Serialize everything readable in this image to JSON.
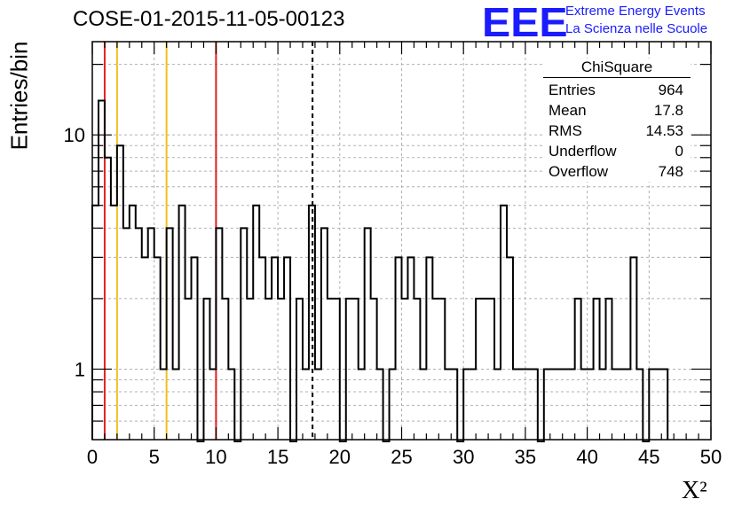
{
  "header": {
    "run_title": "COSE-01-2015-11-05-00123",
    "logo_text": "EEE",
    "brand_line1": "Extreme Energy Events",
    "brand_line2": "La Scienza nelle Scuole"
  },
  "stats_box": {
    "name": "ChiSquare",
    "rows": [
      {
        "label": "Entries",
        "value": "964"
      },
      {
        "label": "Mean",
        "value": "17.8"
      },
      {
        "label": "RMS",
        "value": "14.53"
      },
      {
        "label": "Underflow",
        "value": "0"
      },
      {
        "label": "Overflow",
        "value": "748"
      }
    ]
  },
  "colors": {
    "red_line": "#e02020",
    "yellow_line": "#f0c020",
    "histogram": "#000000",
    "logo": "#1b1bff"
  },
  "chart_data": {
    "type": "histogram",
    "xlabel": "X²",
    "ylabel": "Entries/bin",
    "xlim": [
      0,
      50
    ],
    "ylim": [
      0.5,
      25
    ],
    "y_scale": "log",
    "grid": true,
    "bin_width": 0.5,
    "x_ticks": [
      "0",
      "5",
      "10",
      "15",
      "20",
      "25",
      "30",
      "35",
      "40",
      "45",
      "50"
    ],
    "y_ticks": [
      "1",
      "10"
    ],
    "counts": [
      5,
      14,
      8,
      5,
      9,
      4,
      5,
      4,
      3,
      4,
      3,
      1,
      4,
      1,
      5,
      2,
      3,
      0,
      2,
      1,
      4,
      2,
      1,
      0,
      4,
      2,
      5,
      3,
      2,
      3,
      2,
      3,
      0,
      2,
      1,
      5,
      1,
      4,
      2,
      2,
      0,
      2,
      2,
      1,
      4,
      2,
      1,
      0,
      1,
      3,
      2,
      3,
      2,
      1,
      3,
      2,
      2,
      1,
      1,
      0,
      1,
      1,
      2,
      2,
      2,
      1,
      5,
      3,
      1,
      1,
      1,
      1,
      0,
      1,
      1,
      1,
      1,
      1,
      2,
      1,
      1,
      2,
      1,
      2,
      1,
      1,
      1,
      3,
      1,
      0,
      1,
      1,
      1
    ],
    "vertical_lines": [
      {
        "x": 1,
        "color": "red",
        "style": "solid"
      },
      {
        "x": 2,
        "color": "yellow",
        "style": "solid"
      },
      {
        "x": 6,
        "color": "yellow",
        "style": "solid"
      },
      {
        "x": 10,
        "color": "red",
        "style": "solid"
      },
      {
        "x": 17.8,
        "color": "black",
        "style": "dashed"
      }
    ]
  }
}
